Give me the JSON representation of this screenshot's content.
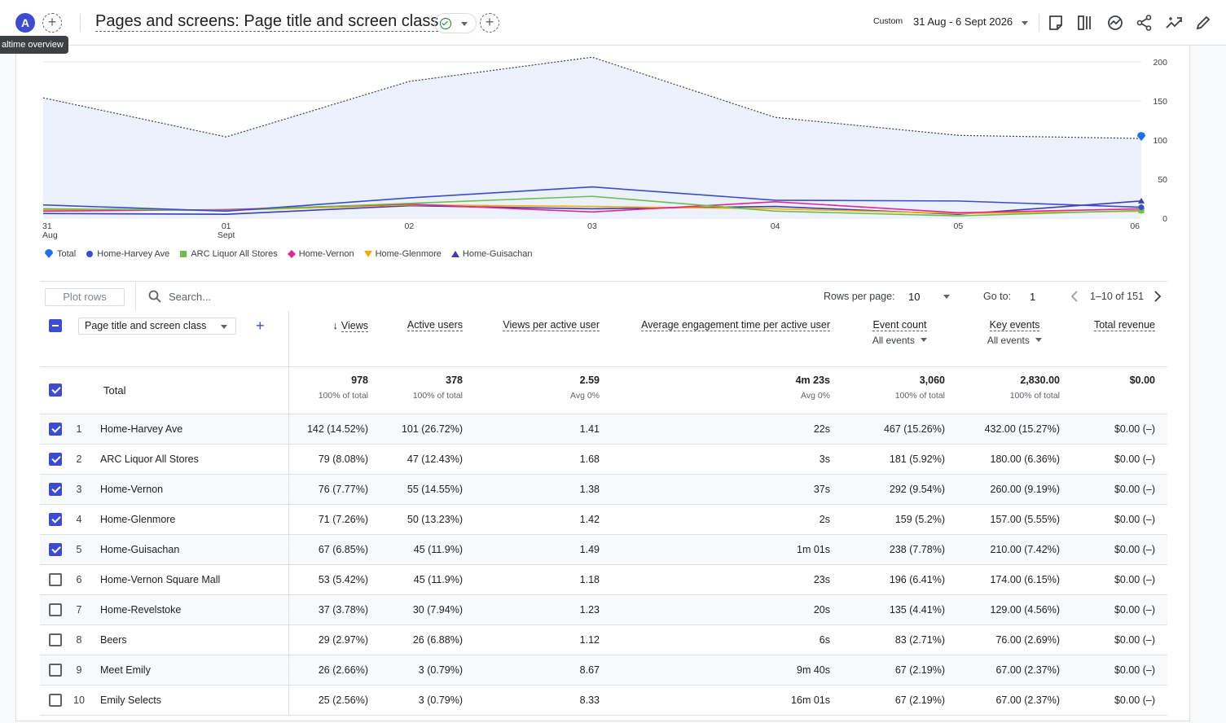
{
  "header": {
    "avatar_letter": "A",
    "tooltip": "altime overview",
    "title": "Pages and screens: Page title and screen class",
    "date_chip": "Custom",
    "date_range": "31 Aug - 6 Sept 2026"
  },
  "chart_data": {
    "type": "line",
    "x": [
      "31 Aug",
      "01 Sept",
      "02",
      "03",
      "04",
      "05",
      "06"
    ],
    "x_tick_labels": [
      [
        "31",
        "Aug"
      ],
      [
        "01",
        "Sept"
      ],
      [
        "02",
        ""
      ],
      [
        "03",
        ""
      ],
      [
        "04",
        ""
      ],
      [
        "05",
        ""
      ],
      [
        "06",
        ""
      ]
    ],
    "y_ticks": [
      "0",
      "50",
      "100",
      "150",
      "200"
    ],
    "ylim": [
      0,
      200
    ],
    "grid": true,
    "legend_position": "bottom-left",
    "series": [
      {
        "name": "Total",
        "color": "#1a73e8",
        "marker": "pin",
        "values": [
          154,
          104,
          175,
          206,
          129,
          106,
          102
        ]
      },
      {
        "name": "Home-Harvey Ave",
        "color": "#3c4bd0",
        "marker": "circle",
        "values": [
          17,
          9,
          26,
          40,
          23,
          22,
          14
        ]
      },
      {
        "name": "ARC Liquor All Stores",
        "color": "#6cbf4a",
        "marker": "square",
        "values": [
          12,
          10,
          19,
          28,
          9,
          3,
          10
        ]
      },
      {
        "name": "Home-Vernon",
        "color": "#e52592",
        "marker": "diamond",
        "values": [
          9,
          11,
          18,
          8,
          21,
          7,
          12
        ]
      },
      {
        "name": "Home-Glenmore",
        "color": "#f9ab00",
        "marker": "triangle-down",
        "values": [
          11,
          10,
          17,
          15,
          12,
          6,
          9
        ]
      },
      {
        "name": "Home-Guisachan",
        "color": "#3b3fb5",
        "marker": "triangle",
        "values": [
          6,
          5,
          16,
          12,
          15,
          5,
          22
        ]
      }
    ]
  },
  "toolbar": {
    "plot_rows": "Plot rows",
    "search_placeholder": "Search...",
    "rows_per_page_label": "Rows per page:",
    "rows_per_page": "10",
    "goto_label": "Go to:",
    "goto_value": "1",
    "range": "1–10 of 151"
  },
  "table": {
    "dimension": "Page title and screen class",
    "headers": {
      "views": "Views",
      "active_users": "Active users",
      "vpau": "Views per active user",
      "aet": "Average engagement time per active user",
      "event_count": "Event count",
      "event_count_sub": "All events",
      "key_events": "Key events",
      "key_events_sub": "All events",
      "revenue": "Total revenue"
    },
    "total": {
      "label": "Total",
      "views": "978",
      "views_sub": "100% of total",
      "users": "378",
      "users_sub": "100% of total",
      "vpau": "2.59",
      "vpau_sub": "Avg 0%",
      "aet": "4m 23s",
      "aet_sub": "Avg 0%",
      "events": "3,060",
      "events_sub": "100% of total",
      "key": "2,830.00",
      "key_sub": "100% of total",
      "revenue": "$0.00"
    },
    "rows": [
      {
        "idx": "1",
        "checked": true,
        "name": "Home-Harvey Ave",
        "views": "142 (14.52%)",
        "users": "101 (26.72%)",
        "vpau": "1.41",
        "aet": "22s",
        "events": "467 (15.26%)",
        "key": "432.00 (15.27%)",
        "revenue": "$0.00 (–)"
      },
      {
        "idx": "2",
        "checked": true,
        "name": "ARC Liquor All Stores",
        "views": "79 (8.08%)",
        "users": "47 (12.43%)",
        "vpau": "1.68",
        "aet": "3s",
        "events": "181 (5.92%)",
        "key": "180.00 (6.36%)",
        "revenue": "$0.00 (–)"
      },
      {
        "idx": "3",
        "checked": true,
        "name": "Home-Vernon",
        "views": "76 (7.77%)",
        "users": "55 (14.55%)",
        "vpau": "1.38",
        "aet": "37s",
        "events": "292 (9.54%)",
        "key": "260.00 (9.19%)",
        "revenue": "$0.00 (–)"
      },
      {
        "idx": "4",
        "checked": true,
        "name": "Home-Glenmore",
        "views": "71 (7.26%)",
        "users": "50 (13.23%)",
        "vpau": "1.42",
        "aet": "2s",
        "events": "159 (5.2%)",
        "key": "157.00 (5.55%)",
        "revenue": "$0.00 (–)"
      },
      {
        "idx": "5",
        "checked": true,
        "name": "Home-Guisachan",
        "views": "67 (6.85%)",
        "users": "45 (11.9%)",
        "vpau": "1.49",
        "aet": "1m 01s",
        "events": "238 (7.78%)",
        "key": "210.00 (7.42%)",
        "revenue": "$0.00 (–)"
      },
      {
        "idx": "6",
        "checked": false,
        "name": "Home-Vernon Square Mall",
        "views": "53 (5.42%)",
        "users": "45 (11.9%)",
        "vpau": "1.18",
        "aet": "23s",
        "events": "196 (6.41%)",
        "key": "174.00 (6.15%)",
        "revenue": "$0.00 (–)"
      },
      {
        "idx": "7",
        "checked": false,
        "name": "Home-Revelstoke",
        "views": "37 (3.78%)",
        "users": "30 (7.94%)",
        "vpau": "1.23",
        "aet": "20s",
        "events": "135 (4.41%)",
        "key": "129.00 (4.56%)",
        "revenue": "$0.00 (–)"
      },
      {
        "idx": "8",
        "checked": false,
        "name": "Beers",
        "views": "29 (2.97%)",
        "users": "26 (6.88%)",
        "vpau": "1.12",
        "aet": "6s",
        "events": "83 (2.71%)",
        "key": "76.00 (2.69%)",
        "revenue": "$0.00 (–)"
      },
      {
        "idx": "9",
        "checked": false,
        "name": "Meet Emily",
        "views": "26 (2.66%)",
        "users": "3 (0.79%)",
        "vpau": "8.67",
        "aet": "9m 40s",
        "events": "67 (2.19%)",
        "key": "67.00 (2.37%)",
        "revenue": "$0.00 (–)"
      },
      {
        "idx": "10",
        "checked": false,
        "name": "Emily Selects",
        "views": "25 (2.56%)",
        "users": "3 (0.79%)",
        "vpau": "8.33",
        "aet": "16m 01s",
        "events": "67 (2.19%)",
        "key": "67.00 (2.37%)",
        "revenue": "$0.00 (–)"
      }
    ]
  },
  "icons": {
    "header_right": [
      "insights-note-icon",
      "compare-icon",
      "customize-chart-icon",
      "share-icon",
      "trend-icon",
      "edit-icon"
    ]
  }
}
